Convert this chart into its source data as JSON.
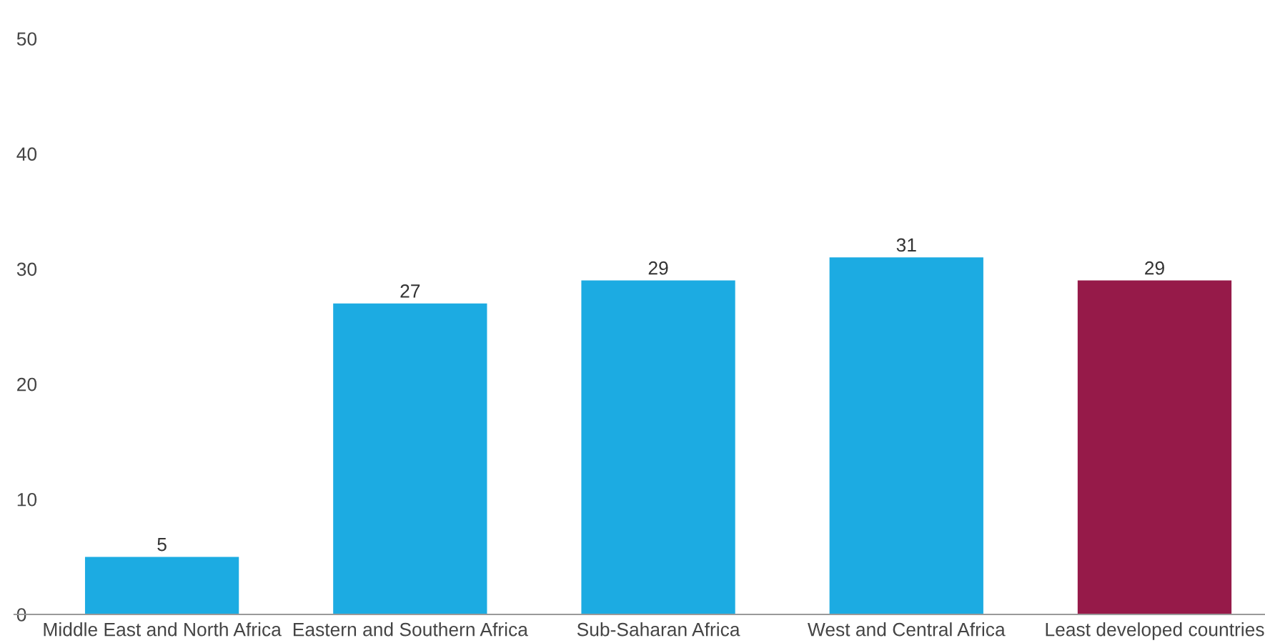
{
  "chart_data": {
    "type": "bar",
    "categories": [
      "Middle East and North Africa",
      "Eastern and Southern Africa",
      "Sub-Saharan Africa",
      "West and Central Africa",
      "Least developed countries"
    ],
    "values": [
      5,
      27,
      29,
      31,
      29
    ],
    "colors": [
      "#1cabe2",
      "#1cabe2",
      "#1cabe2",
      "#1cabe2",
      "#961a49"
    ],
    "ylim": [
      0,
      50
    ],
    "yticks": [
      0,
      10,
      20,
      30,
      40,
      50
    ],
    "data_labels": true
  }
}
